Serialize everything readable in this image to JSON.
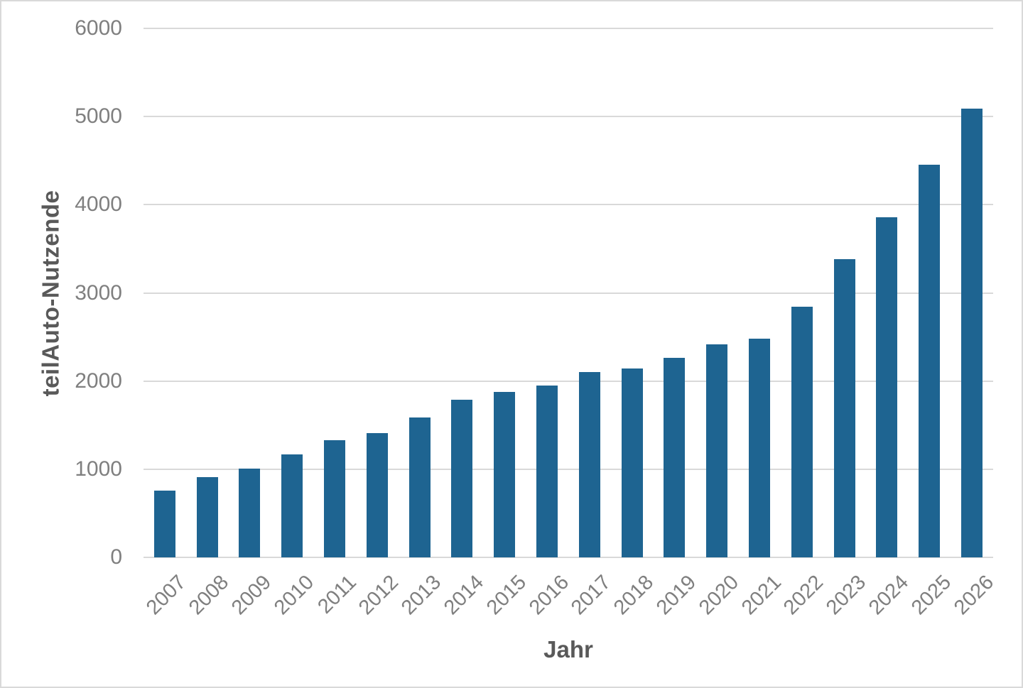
{
  "page": {
    "background_color": "#ffffff",
    "frame_border_color": "#d9d9d9"
  },
  "chart_data": {
    "type": "bar",
    "title": "",
    "xlabel": "Jahr",
    "ylabel": "teilAuto-Nutzende",
    "categories": [
      "2007",
      "2008",
      "2009",
      "2010",
      "2011",
      "2012",
      "2013",
      "2014",
      "2015",
      "2016",
      "2017",
      "2018",
      "2019",
      "2020",
      "2021",
      "2022",
      "2023",
      "2024",
      "2025",
      "2026"
    ],
    "values": [
      760,
      910,
      1010,
      1170,
      1330,
      1410,
      1590,
      1790,
      1880,
      1950,
      2100,
      2140,
      2260,
      2420,
      2480,
      2840,
      3380,
      3860,
      4450,
      5090
    ],
    "ylim": [
      0,
      6000
    ],
    "yticks": [
      0,
      1000,
      2000,
      3000,
      4000,
      5000,
      6000
    ],
    "grid": "horizontal",
    "legend": "none",
    "x_tick_rotation_deg": -45,
    "bar_color": "#1e6491",
    "gridline_color": "#d9d9d9",
    "tick_label_color": "#7f7f7f",
    "axis_title_color": "#595959"
  }
}
